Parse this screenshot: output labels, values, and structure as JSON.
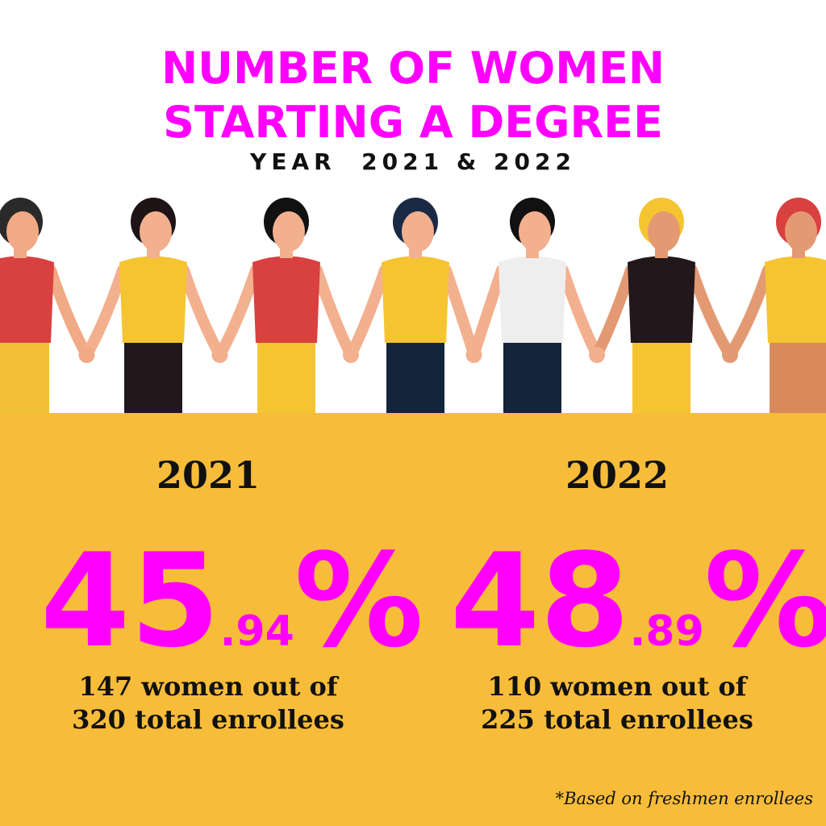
{
  "header": {
    "title_lines": [
      "NUMBER OF WOMEN",
      "STARTING A DEGREE"
    ],
    "subtitle": "YEAR  2021 & 2022"
  },
  "stats": [
    {
      "year": "2021",
      "whole": "45",
      "decimal": ".94",
      "unit": "%",
      "detail_lines": [
        "147 women out of",
        "320 total enrollees"
      ]
    },
    {
      "year": "2022",
      "whole": "48",
      "decimal": ".89",
      "unit": "%",
      "detail_lines": [
        "110 women out of",
        "225 total enrollees"
      ]
    }
  ],
  "footnote": "*Based on freshmen enrollees"
}
